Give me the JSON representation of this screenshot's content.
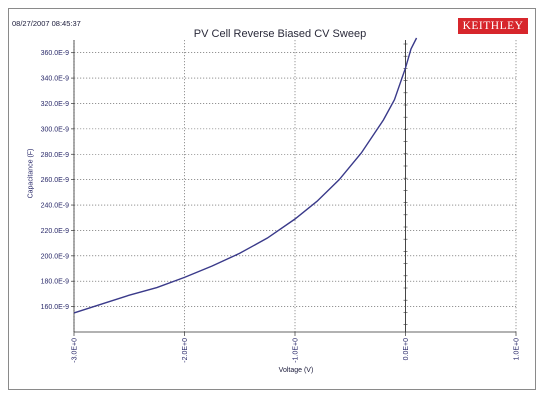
{
  "header": {
    "timestamp": "08/27/2007 08:45:37",
    "logo_text": "KEITHLEY",
    "logo_color": "#d7262c"
  },
  "chart_data": {
    "type": "line",
    "title": "PV Cell Reverse Biased CV Sweep",
    "xlabel": "Voltage (V)",
    "ylabel": "Capacitance (F)",
    "xlim": [
      -3.0,
      1.0
    ],
    "ylim": [
      1.4e-07,
      3.7e-07
    ],
    "x_ticks": [
      -3.0,
      -2.0,
      -1.0,
      0.0,
      1.0
    ],
    "x_tick_labels": [
      "-3.0E+0",
      "-2.0E+0",
      "-1.0E+0",
      "0.0E+0",
      "1.0E+0"
    ],
    "y_ticks": [
      1.6e-07,
      1.8e-07,
      2e-07,
      2.2e-07,
      2.4e-07,
      2.6e-07,
      2.8e-07,
      3e-07,
      3.2e-07,
      3.4e-07,
      3.6e-07
    ],
    "y_tick_labels": [
      "160.0E-9",
      "180.0E-9",
      "200.0E-9",
      "220.0E-9",
      "240.0E-9",
      "260.0E-9",
      "280.0E-9",
      "300.0E-9",
      "320.0E-9",
      "340.0E-9",
      "360.0E-9"
    ],
    "grid": true,
    "line_color": "#3a3a8a",
    "series": [
      {
        "x": [
          -3.0,
          -2.75,
          -2.5,
          -2.25,
          -2.0,
          -1.75,
          -1.5,
          -1.25,
          -1.0,
          -0.8,
          -0.6,
          -0.4,
          -0.2,
          -0.1,
          0.0,
          0.05,
          0.1
        ],
        "y": [
          1.55e-07,
          1.62e-07,
          1.69e-07,
          1.75e-07,
          1.83e-07,
          1.92e-07,
          2.02e-07,
          2.14e-07,
          2.29e-07,
          2.43e-07,
          2.6e-07,
          2.81e-07,
          3.07e-07,
          3.23e-07,
          3.48e-07,
          3.63e-07,
          3.78e-07
        ]
      }
    ]
  }
}
